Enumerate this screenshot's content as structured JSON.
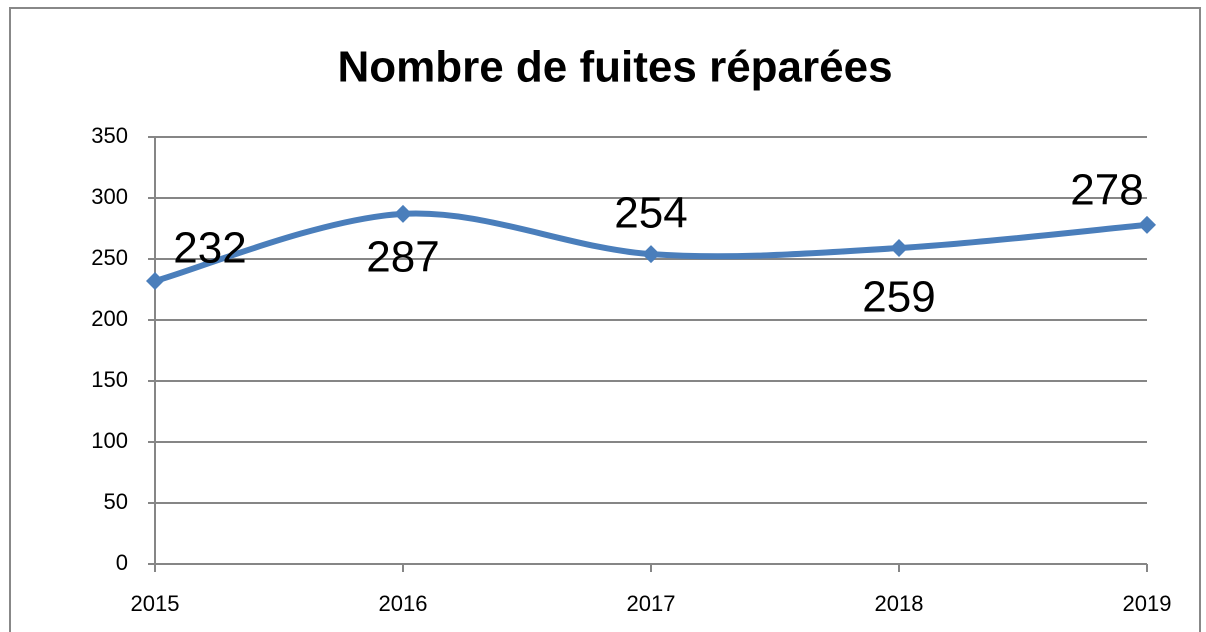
{
  "chart_data": {
    "type": "line",
    "title": "Nombre de fuites réparées",
    "categories": [
      "2015",
      "2016",
      "2017",
      "2018",
      "2019"
    ],
    "values": [
      232,
      287,
      254,
      259,
      278
    ],
    "color": "#4a7ebb",
    "ylim": [
      0,
      350
    ],
    "yticks": [
      0,
      50,
      100,
      150,
      200,
      250,
      300,
      350
    ],
    "grid": true,
    "smooth": true
  }
}
